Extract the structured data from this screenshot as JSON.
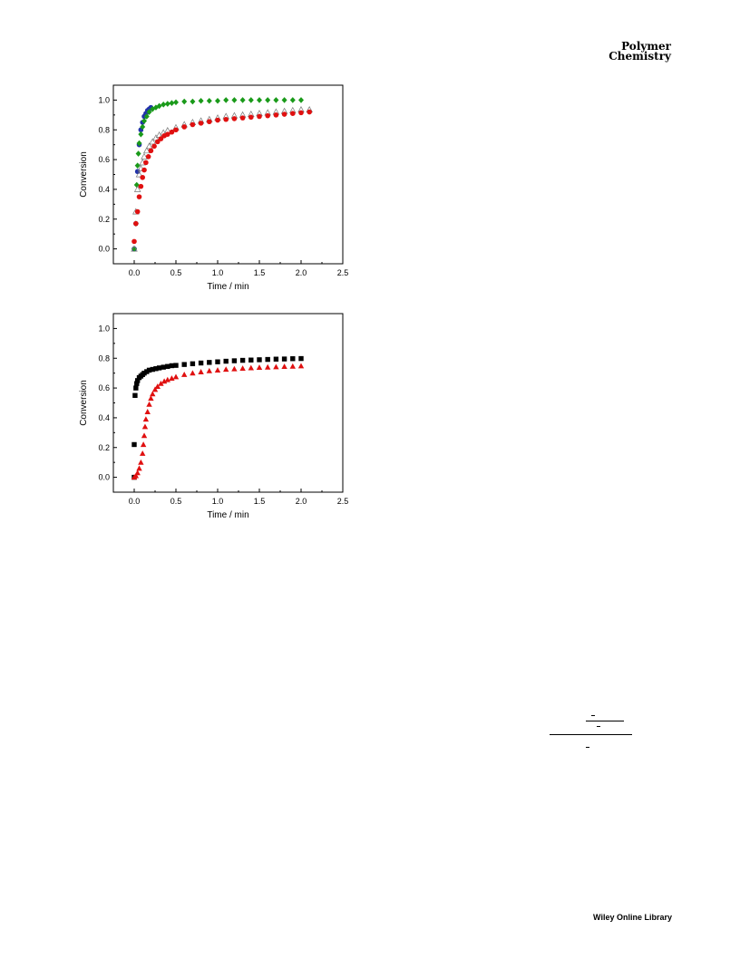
{
  "journal": {
    "line1": "Polymer",
    "line2": "Chemistry"
  },
  "footer": {
    "brand": "Wiley Online Library"
  },
  "chart_data": [
    {
      "type": "scatter",
      "title": "",
      "xlabel": "Time / min",
      "ylabel": "Conversion",
      "xlim": [
        -0.25,
        2.5
      ],
      "ylim": [
        -0.1,
        1.1
      ],
      "xticks": [
        0.0,
        0.5,
        1.0,
        1.5,
        2.0,
        2.5
      ],
      "yticks": [
        0.0,
        0.2,
        0.4,
        0.6,
        0.8,
        1.0
      ],
      "xtick_labels": [
        "0.0",
        "0.5",
        "1.0",
        "1.5",
        "2.0",
        "2.5"
      ],
      "ytick_labels": [
        "0.0",
        "0.2",
        "0.4",
        "0.6",
        "0.8",
        "1.0"
      ],
      "grid": false,
      "series": [
        {
          "marker": "circle",
          "color": "#2233aa",
          "points": [
            [
              0.0,
              0.0
            ],
            [
              0.02,
              0.17
            ],
            [
              0.04,
              0.52
            ],
            [
              0.06,
              0.7
            ],
            [
              0.08,
              0.8
            ],
            [
              0.1,
              0.85
            ],
            [
              0.12,
              0.89
            ],
            [
              0.14,
              0.91
            ],
            [
              0.16,
              0.93
            ],
            [
              0.18,
              0.94
            ],
            [
              0.2,
              0.95
            ]
          ]
        },
        {
          "marker": "diamond",
          "color": "#1a9a1a",
          "points": [
            [
              0.0,
              0.0
            ],
            [
              0.02,
              0.17
            ],
            [
              0.03,
              0.43
            ],
            [
              0.04,
              0.56
            ],
            [
              0.05,
              0.64
            ],
            [
              0.06,
              0.71
            ],
            [
              0.08,
              0.77
            ],
            [
              0.1,
              0.82
            ],
            [
              0.12,
              0.86
            ],
            [
              0.15,
              0.89
            ],
            [
              0.18,
              0.92
            ],
            [
              0.22,
              0.94
            ],
            [
              0.26,
              0.95
            ],
            [
              0.3,
              0.96
            ],
            [
              0.35,
              0.97
            ],
            [
              0.4,
              0.975
            ],
            [
              0.45,
              0.98
            ],
            [
              0.5,
              0.985
            ],
            [
              0.6,
              0.99
            ],
            [
              0.7,
              0.99
            ],
            [
              0.8,
              0.995
            ],
            [
              0.9,
              0.995
            ],
            [
              1.0,
              0.995
            ],
            [
              1.1,
              1.0
            ],
            [
              1.2,
              1.0
            ],
            [
              1.3,
              1.0
            ],
            [
              1.4,
              1.0
            ],
            [
              1.5,
              1.0
            ],
            [
              1.6,
              1.0
            ],
            [
              1.7,
              1.0
            ],
            [
              1.8,
              1.0
            ],
            [
              1.9,
              1.0
            ],
            [
              2.0,
              1.0
            ]
          ]
        },
        {
          "marker": "open-triangle",
          "color": "#777777",
          "points": [
            [
              0.0,
              0.0
            ],
            [
              0.02,
              0.25
            ],
            [
              0.04,
              0.4
            ],
            [
              0.06,
              0.5
            ],
            [
              0.08,
              0.54
            ],
            [
              0.1,
              0.58
            ],
            [
              0.12,
              0.62
            ],
            [
              0.15,
              0.66
            ],
            [
              0.18,
              0.69
            ],
            [
              0.22,
              0.72
            ],
            [
              0.26,
              0.745
            ],
            [
              0.3,
              0.765
            ],
            [
              0.35,
              0.78
            ],
            [
              0.4,
              0.795
            ],
            [
              0.5,
              0.815
            ],
            [
              0.6,
              0.835
            ],
            [
              0.7,
              0.85
            ],
            [
              0.8,
              0.86
            ],
            [
              0.9,
              0.87
            ],
            [
              1.0,
              0.88
            ],
            [
              1.1,
              0.89
            ],
            [
              1.2,
              0.895
            ],
            [
              1.3,
              0.9
            ],
            [
              1.4,
              0.905
            ],
            [
              1.5,
              0.91
            ],
            [
              1.6,
              0.915
            ],
            [
              1.7,
              0.92
            ],
            [
              1.8,
              0.925
            ],
            [
              1.9,
              0.93
            ],
            [
              2.0,
              0.935
            ],
            [
              2.1,
              0.935
            ]
          ]
        },
        {
          "marker": "circle",
          "color": "#e01010",
          "points": [
            [
              0.0,
              0.05
            ],
            [
              0.02,
              0.17
            ],
            [
              0.04,
              0.25
            ],
            [
              0.06,
              0.35
            ],
            [
              0.08,
              0.42
            ],
            [
              0.1,
              0.48
            ],
            [
              0.12,
              0.53
            ],
            [
              0.14,
              0.58
            ],
            [
              0.17,
              0.62
            ],
            [
              0.2,
              0.66
            ],
            [
              0.24,
              0.69
            ],
            [
              0.28,
              0.72
            ],
            [
              0.32,
              0.74
            ],
            [
              0.36,
              0.76
            ],
            [
              0.4,
              0.77
            ],
            [
              0.45,
              0.785
            ],
            [
              0.5,
              0.8
            ],
            [
              0.6,
              0.82
            ],
            [
              0.7,
              0.835
            ],
            [
              0.8,
              0.845
            ],
            [
              0.9,
              0.855
            ],
            [
              1.0,
              0.865
            ],
            [
              1.1,
              0.87
            ],
            [
              1.2,
              0.875
            ],
            [
              1.3,
              0.88
            ],
            [
              1.4,
              0.885
            ],
            [
              1.5,
              0.89
            ],
            [
              1.6,
              0.895
            ],
            [
              1.7,
              0.9
            ],
            [
              1.8,
              0.905
            ],
            [
              1.9,
              0.91
            ],
            [
              2.0,
              0.915
            ],
            [
              2.1,
              0.92
            ]
          ]
        }
      ]
    },
    {
      "type": "scatter",
      "title": "",
      "xlabel": "Time / min",
      "ylabel": "Conversion",
      "xlim": [
        -0.25,
        2.5
      ],
      "ylim": [
        -0.1,
        1.1
      ],
      "xticks": [
        0.0,
        0.5,
        1.0,
        1.5,
        2.0,
        2.5
      ],
      "yticks": [
        0.0,
        0.2,
        0.4,
        0.6,
        0.8,
        1.0
      ],
      "xtick_labels": [
        "0.0",
        "0.5",
        "1.0",
        "1.5",
        "2.0",
        "2.5"
      ],
      "ytick_labels": [
        "0.0",
        "0.2",
        "0.4",
        "0.6",
        "0.8",
        "1.0"
      ],
      "grid": false,
      "series": [
        {
          "marker": "square",
          "color": "#000000",
          "points": [
            [
              0.0,
              0.0
            ],
            [
              0.0,
              0.22
            ],
            [
              0.01,
              0.55
            ],
            [
              0.02,
              0.6
            ],
            [
              0.03,
              0.63
            ],
            [
              0.04,
              0.65
            ],
            [
              0.06,
              0.67
            ],
            [
              0.08,
              0.68
            ],
            [
              0.1,
              0.69
            ],
            [
              0.12,
              0.7
            ],
            [
              0.15,
              0.71
            ],
            [
              0.18,
              0.72
            ],
            [
              0.22,
              0.725
            ],
            [
              0.26,
              0.73
            ],
            [
              0.3,
              0.735
            ],
            [
              0.35,
              0.74
            ],
            [
              0.4,
              0.745
            ],
            [
              0.45,
              0.75
            ],
            [
              0.5,
              0.752
            ],
            [
              0.6,
              0.758
            ],
            [
              0.7,
              0.763
            ],
            [
              0.8,
              0.768
            ],
            [
              0.9,
              0.772
            ],
            [
              1.0,
              0.776
            ],
            [
              1.1,
              0.78
            ],
            [
              1.2,
              0.783
            ],
            [
              1.3,
              0.786
            ],
            [
              1.4,
              0.788
            ],
            [
              1.5,
              0.79
            ],
            [
              1.6,
              0.792
            ],
            [
              1.7,
              0.794
            ],
            [
              1.8,
              0.795
            ],
            [
              1.9,
              0.797
            ],
            [
              2.0,
              0.798
            ]
          ]
        },
        {
          "marker": "triangle",
          "color": "#e01010",
          "points": [
            [
              0.0,
              0.0
            ],
            [
              0.02,
              0.01
            ],
            [
              0.04,
              0.03
            ],
            [
              0.06,
              0.06
            ],
            [
              0.08,
              0.1
            ],
            [
              0.1,
              0.16
            ],
            [
              0.11,
              0.22
            ],
            [
              0.12,
              0.28
            ],
            [
              0.13,
              0.34
            ],
            [
              0.14,
              0.39
            ],
            [
              0.16,
              0.44
            ],
            [
              0.18,
              0.49
            ],
            [
              0.2,
              0.53
            ],
            [
              0.22,
              0.56
            ],
            [
              0.25,
              0.59
            ],
            [
              0.28,
              0.61
            ],
            [
              0.32,
              0.63
            ],
            [
              0.36,
              0.645
            ],
            [
              0.4,
              0.655
            ],
            [
              0.45,
              0.665
            ],
            [
              0.5,
              0.675
            ],
            [
              0.6,
              0.69
            ],
            [
              0.7,
              0.7
            ],
            [
              0.8,
              0.708
            ],
            [
              0.9,
              0.715
            ],
            [
              1.0,
              0.72
            ],
            [
              1.1,
              0.725
            ],
            [
              1.2,
              0.728
            ],
            [
              1.3,
              0.732
            ],
            [
              1.4,
              0.735
            ],
            [
              1.5,
              0.738
            ],
            [
              1.6,
              0.74
            ],
            [
              1.7,
              0.742
            ],
            [
              1.8,
              0.744
            ],
            [
              1.9,
              0.746
            ],
            [
              2.0,
              0.748
            ]
          ]
        }
      ]
    }
  ]
}
